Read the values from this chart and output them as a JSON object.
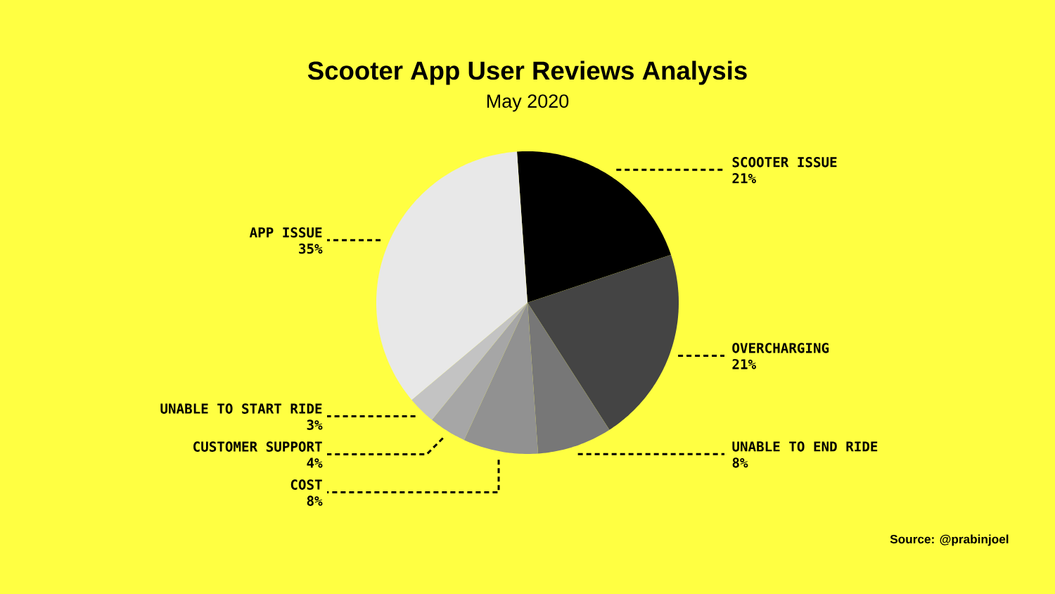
{
  "chart_data": {
    "type": "pie",
    "title": "Scooter App User Reviews Analysis",
    "subtitle": "May 2020",
    "categories": [
      "SCOOTER ISSUE",
      "OVERCHARGING",
      "UNABLE TO END  RIDE",
      "COST",
      "CUSTOMER SUPPORT",
      "UNABLE TO START RIDE",
      "APP ISSUE"
    ],
    "values": [
      21,
      21,
      8,
      8,
      4,
      3,
      35
    ],
    "colors": [
      "#000000",
      "#444444",
      "#777777",
      "#919191",
      "#a6a6a6",
      "#c3c3c3",
      "#e8e8e8"
    ],
    "value_labels": [
      "21%",
      "21%",
      "8%",
      "8%",
      "4%",
      "3%",
      "35%"
    ],
    "annotations": [
      "Source: @prabinjoel"
    ]
  }
}
